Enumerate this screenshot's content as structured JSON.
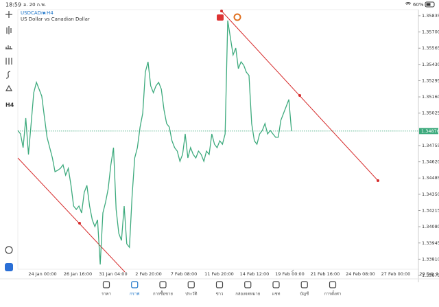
{
  "status_bar": {
    "time": "18:59",
    "date": "อ. 20 ก.พ.",
    "battery": "60%"
  },
  "chart_header": {
    "symbol": "USDCADm",
    "timeframe": "H4",
    "description": "US Dollar vs Canadian Dollar"
  },
  "toolbar": {
    "timeframe_label": "H4"
  },
  "chart_data": {
    "type": "line",
    "color": "#3daa7d",
    "values": [
      1.34881,
      1.34852,
      1.34738,
      1.34984,
      1.34681,
      1.34938,
      1.35195,
      1.35281,
      1.35224,
      1.35166,
      1.34995,
      1.34824,
      1.34738,
      1.34652,
      1.34538,
      1.34549,
      1.34566,
      1.34595,
      1.34509,
      1.34566,
      1.34424,
      1.34252,
      1.34224,
      1.34252,
      1.34195,
      1.34366,
      1.34424,
      1.34252,
      1.34138,
      1.34081,
      1.34138,
      1.33766,
      1.34195,
      1.34281,
      1.34395,
      1.34595,
      1.34738,
      1.34224,
      1.34024,
      1.33966,
      1.34252,
      1.33938,
      1.33909,
      1.34338,
      1.34652,
      1.34738,
      1.34909,
      1.35024,
      1.35366,
      1.35452,
      1.35252,
      1.35195,
      1.35252,
      1.35281,
      1.35224,
      1.35052,
      1.34938,
      1.34909,
      1.34795,
      1.34738,
      1.34709,
      1.34624,
      1.34681,
      1.34852,
      1.34652,
      1.34738,
      1.34681,
      1.34652,
      1.34709,
      1.34681,
      1.34624,
      1.34709,
      1.34681,
      1.34852,
      1.34766,
      1.34738,
      1.34795,
      1.34766,
      1.34852,
      1.35795,
      1.35652,
      1.35509,
      1.35566,
      1.35395,
      1.35452,
      1.35424,
      1.35366,
      1.35338,
      1.34938,
      1.34795,
      1.34766,
      1.34852,
      1.34881,
      1.34938,
      1.34852,
      1.34881,
      1.34852,
      1.34824,
      1.34824,
      1.34966,
      1.35024,
      1.35081,
      1.35138,
      1.34876
    ],
    "ylim": [
      1.33618,
      1.35886
    ],
    "yticks": [
      1.35835,
      {
        "value": 1.357,
        "label": "1.35700"
      },
      1.35565,
      {
        "value": 1.3543,
        "label": "1.35430"
      },
      1.35295,
      {
        "value": 1.3516,
        "label": "1.35160"
      },
      1.35025,
      1.34755,
      {
        "value": 1.3462,
        "label": "1.34620"
      },
      1.34485,
      {
        "value": 1.3435,
        "label": "1.34350"
      },
      1.34215,
      {
        "value": 1.3408,
        "label": "1.34080"
      },
      1.33945,
      {
        "value": 1.3381,
        "label": "1.33810"
      },
      1.33675
    ],
    "current_price": 1.34876,
    "x_labels": [
      "24 Jan 00:00",
      "26 Jan 16:00",
      "31 Jan 04:00",
      "2 Feb 20:00",
      "7 Feb 08:00",
      "11 Feb 20:00",
      "14 Feb 12:00",
      "19 Feb 00:00",
      "21 Feb 16:00",
      "24 Feb 08:00",
      "27 Feb 00:00",
      "29 Feb 16:"
    ]
  },
  "tab_bar": {
    "items": [
      "ราคา",
      "กราฟ",
      "การซื้อขาย",
      "ประวัติ",
      "ข่าว",
      "กล่องจดหมาย",
      "แชท",
      "บัญชี",
      "การตั้งค่า"
    ]
  }
}
